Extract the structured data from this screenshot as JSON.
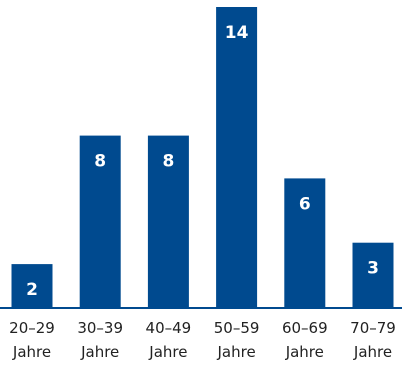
{
  "chart_data": {
    "type": "bar",
    "categories": [
      [
        "20–29",
        "Jahre"
      ],
      [
        "30–39",
        "Jahre"
      ],
      [
        "40–49",
        "Jahre"
      ],
      [
        "50–59",
        "Jahre"
      ],
      [
        "60–69",
        "Jahre"
      ],
      [
        "70–79",
        "Jahre"
      ]
    ],
    "values": [
      2,
      8,
      8,
      14,
      6,
      3
    ],
    "ylim": [
      0,
      14
    ],
    "title": "",
    "xlabel": "",
    "ylabel": "",
    "grid": false,
    "legend": "none",
    "bar_color": "#004a8f",
    "label_color": "#ffffff",
    "axis_color": "#004a8f"
  }
}
